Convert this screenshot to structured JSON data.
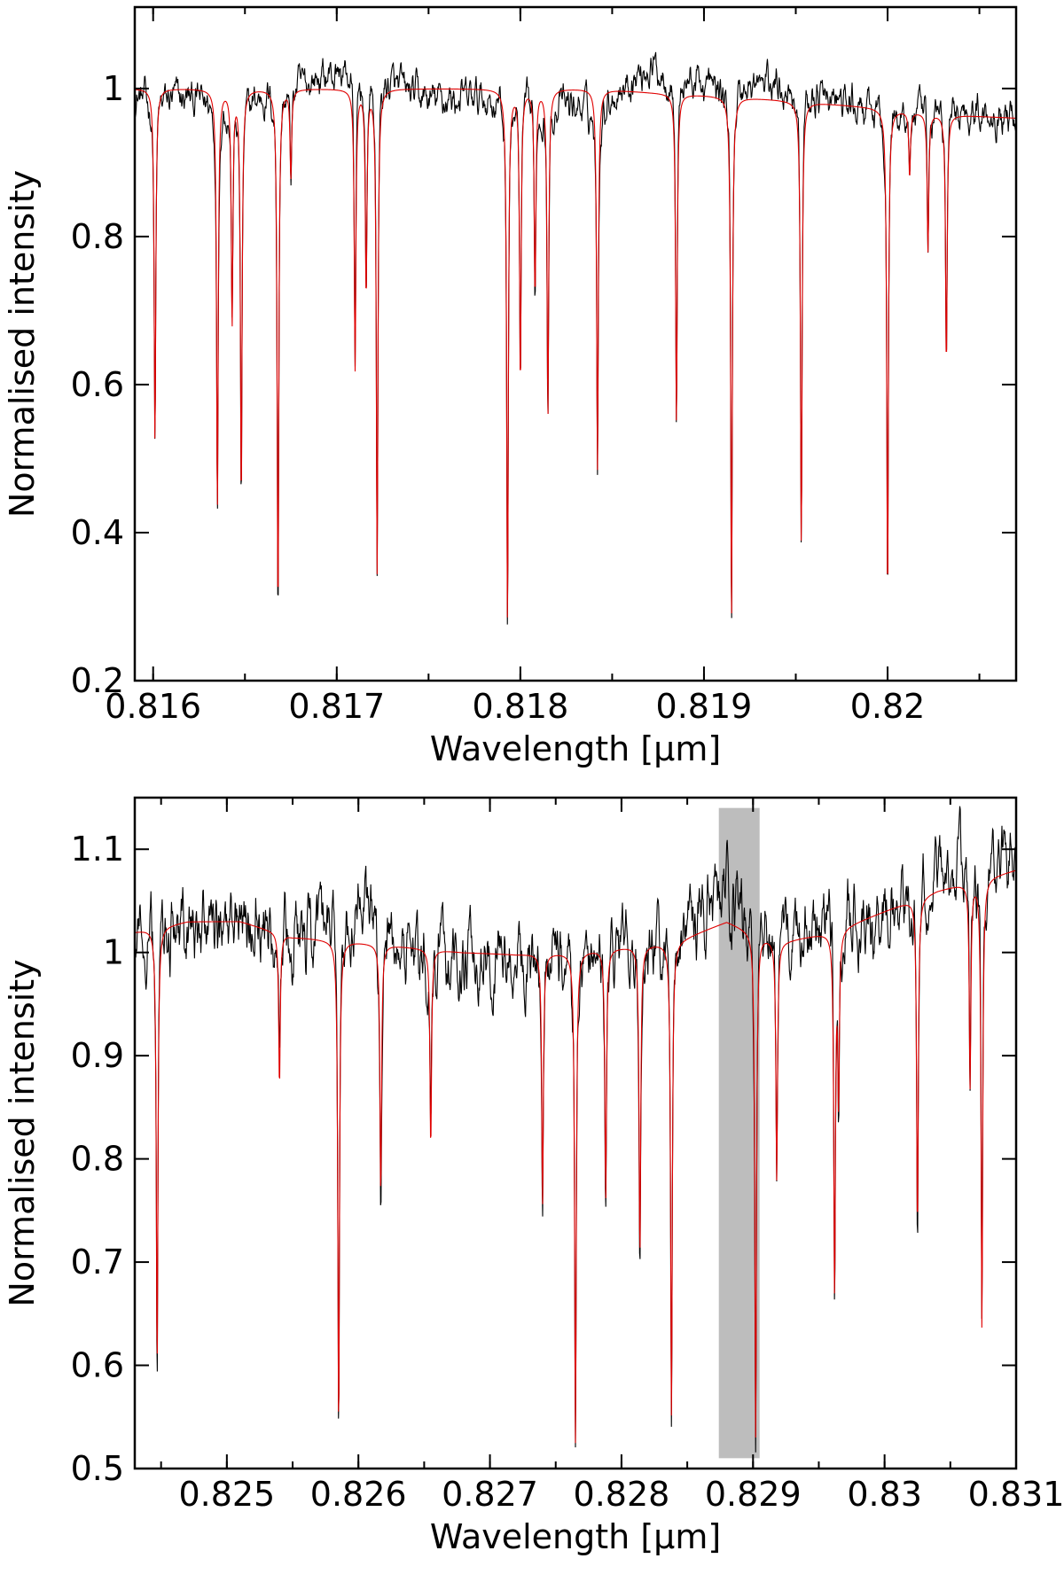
{
  "chart_data": [
    {
      "type": "line",
      "xlabel": "Wavelength [μm]",
      "ylabel": "Normalised intensity",
      "xlim": [
        0.8159,
        0.8207
      ],
      "ylim": [
        0.2,
        1.11
      ],
      "xticks": [
        0.816,
        0.817,
        0.818,
        0.819,
        0.82
      ],
      "xtick_labels": [
        "0.816",
        "0.817",
        "0.818",
        "0.819",
        "0.82"
      ],
      "yticks": [
        0.2,
        0.4,
        0.6,
        0.8,
        1.0
      ],
      "ytick_labels": [
        "0.2",
        "0.4",
        "0.6",
        "0.8",
        "1"
      ],
      "grid": false,
      "series": [
        {
          "color": "#000000",
          "continuum": [
            [
              0.8159,
              0.99
            ],
            [
              0.8165,
              0.985
            ],
            [
              0.8171,
              1.03
            ],
            [
              0.8175,
              0.985
            ],
            [
              0.818,
              0.99
            ],
            [
              0.8184,
              0.975
            ],
            [
              0.8187,
              1.03
            ],
            [
              0.8191,
              1.0
            ],
            [
              0.8194,
              1.01
            ],
            [
              0.8199,
              0.97
            ],
            [
              0.8203,
              0.975
            ],
            [
              0.8207,
              0.965
            ]
          ],
          "noise": 0.025,
          "lines": [
            [
              0.81601,
              0.515
            ],
            [
              0.81635,
              0.43
            ],
            [
              0.81643,
              0.69
            ],
            [
              0.81648,
              0.435
            ],
            [
              0.81668,
              0.28
            ],
            [
              0.81675,
              0.88
            ],
            [
              0.8171,
              0.62
            ],
            [
              0.81716,
              0.71
            ],
            [
              0.81722,
              0.345
            ],
            [
              0.81793,
              0.27
            ],
            [
              0.818,
              0.6
            ],
            [
              0.81808,
              0.72
            ],
            [
              0.81815,
              0.55
            ],
            [
              0.81842,
              0.48
            ],
            [
              0.81885,
              0.545
            ],
            [
              0.81915,
              0.275
            ],
            [
              0.81953,
              0.375
            ],
            [
              0.82,
              0.3
            ],
            [
              0.82012,
              0.88
            ],
            [
              0.82022,
              0.78
            ],
            [
              0.82032,
              0.62
            ]
          ]
        },
        {
          "color": "#e00000",
          "continuum": [
            [
              0.8159,
              1.0
            ],
            [
              0.8165,
              1.0
            ],
            [
              0.8171,
              1.0
            ],
            [
              0.8175,
              1.0
            ],
            [
              0.818,
              1.0
            ],
            [
              0.8184,
              1.0
            ],
            [
              0.8187,
              0.995
            ],
            [
              0.8191,
              0.99
            ],
            [
              0.8194,
              0.985
            ],
            [
              0.8199,
              0.975
            ],
            [
              0.8203,
              0.965
            ],
            [
              0.8207,
              0.96
            ]
          ],
          "lines": [
            [
              0.81601,
              0.52
            ],
            [
              0.81635,
              0.43
            ],
            [
              0.81643,
              0.68
            ],
            [
              0.81648,
              0.44
            ],
            [
              0.81668,
              0.285
            ],
            [
              0.81675,
              0.88
            ],
            [
              0.8171,
              0.62
            ],
            [
              0.81716,
              0.72
            ],
            [
              0.81722,
              0.345
            ],
            [
              0.81793,
              0.275
            ],
            [
              0.818,
              0.6
            ],
            [
              0.81808,
              0.72
            ],
            [
              0.81815,
              0.555
            ],
            [
              0.81842,
              0.485
            ],
            [
              0.81885,
              0.545
            ],
            [
              0.81915,
              0.28
            ],
            [
              0.81953,
              0.38
            ],
            [
              0.82,
              0.305
            ],
            [
              0.82012,
              0.88
            ],
            [
              0.82022,
              0.78
            ],
            [
              0.82032,
              0.625
            ]
          ]
        }
      ]
    },
    {
      "type": "line",
      "xlabel": "Wavelength [μm]",
      "ylabel": "Normalised intensity",
      "xlim": [
        0.8243,
        0.831
      ],
      "ylim": [
        0.5,
        1.15
      ],
      "xticks": [
        0.825,
        0.826,
        0.827,
        0.828,
        0.829,
        0.83,
        0.831
      ],
      "xtick_labels": [
        "0.825",
        "0.826",
        "0.827",
        "0.828",
        "0.829",
        "0.83",
        "0.831"
      ],
      "yticks": [
        0.5,
        0.6,
        0.7,
        0.8,
        0.9,
        1.0,
        1.1
      ],
      "ytick_labels": [
        "0.5",
        "0.6",
        "0.7",
        "0.8",
        "0.9",
        "1",
        "1.1"
      ],
      "grid": false,
      "shaded_band": {
        "x": [
          0.82874,
          0.82905
        ],
        "y": [
          0.51,
          1.14
        ]
      },
      "series": [
        {
          "color": "#000000",
          "continuum": [
            [
              0.8243,
              1.04
            ],
            [
              0.8247,
              1.02
            ],
            [
              0.8251,
              1.04
            ],
            [
              0.8255,
              1.01
            ],
            [
              0.826,
              1.04
            ],
            [
              0.8264,
              1.0
            ],
            [
              0.8268,
              0.995
            ],
            [
              0.8272,
              0.995
            ],
            [
              0.8276,
              1.0
            ],
            [
              0.828,
              1.01
            ],
            [
              0.8284,
              1.02
            ],
            [
              0.8288,
              1.06
            ],
            [
              0.8292,
              1.01
            ],
            [
              0.8296,
              1.04
            ],
            [
              0.83,
              1.03
            ],
            [
              0.8304,
              1.08
            ],
            [
              0.8307,
              1.09
            ],
            [
              0.831,
              1.09
            ]
          ],
          "noise": 0.035,
          "lines": [
            [
              0.82447,
              0.6
            ],
            [
              0.8254,
              0.86
            ],
            [
              0.82585,
              0.535
            ],
            [
              0.82617,
              0.76
            ],
            [
              0.82655,
              0.805
            ],
            [
              0.8274,
              0.75
            ],
            [
              0.82765,
              0.52
            ],
            [
              0.82788,
              0.76
            ],
            [
              0.82814,
              0.7
            ],
            [
              0.82838,
              0.545
            ],
            [
              0.82902,
              0.52
            ],
            [
              0.82918,
              0.775
            ],
            [
              0.82962,
              0.67
            ],
            [
              0.82965,
              0.85
            ],
            [
              0.83025,
              0.72
            ],
            [
              0.83065,
              0.86
            ],
            [
              0.83074,
              0.63
            ]
          ]
        },
        {
          "color": "#e00000",
          "continuum": [
            [
              0.8243,
              1.02
            ],
            [
              0.8247,
              1.03
            ],
            [
              0.8251,
              1.03
            ],
            [
              0.8255,
              1.015
            ],
            [
              0.826,
              1.01
            ],
            [
              0.8264,
              1.005
            ],
            [
              0.8268,
              1.0
            ],
            [
              0.8272,
              0.998
            ],
            [
              0.8276,
              1.0
            ],
            [
              0.828,
              1.005
            ],
            [
              0.8284,
              1.01
            ],
            [
              0.8288,
              1.03
            ],
            [
              0.8292,
              1.01
            ],
            [
              0.8296,
              1.02
            ],
            [
              0.83,
              1.04
            ],
            [
              0.8304,
              1.06
            ],
            [
              0.8307,
              1.07
            ],
            [
              0.831,
              1.08
            ]
          ],
          "lines": [
            [
              0.82447,
              0.6
            ],
            [
              0.8254,
              0.87
            ],
            [
              0.82585,
              0.535
            ],
            [
              0.82617,
              0.765
            ],
            [
              0.82655,
              0.81
            ],
            [
              0.8274,
              0.755
            ],
            [
              0.82765,
              0.525
            ],
            [
              0.82788,
              0.76
            ],
            [
              0.82814,
              0.705
            ],
            [
              0.82838,
              0.55
            ],
            [
              0.82902,
              0.53
            ],
            [
              0.82918,
              0.78
            ],
            [
              0.82962,
              0.67
            ],
            [
              0.82965,
              0.86
            ],
            [
              0.83025,
              0.73
            ],
            [
              0.83065,
              0.87
            ],
            [
              0.83074,
              0.635
            ]
          ]
        }
      ]
    }
  ]
}
